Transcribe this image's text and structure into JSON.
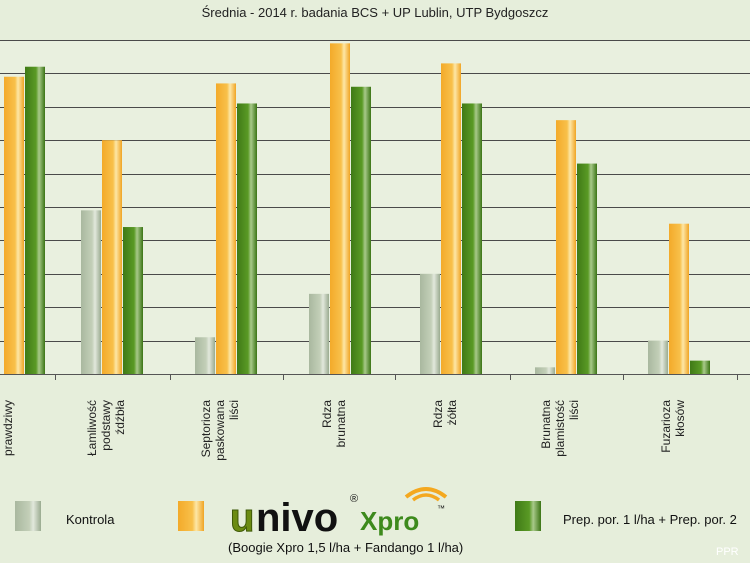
{
  "chart_data": {
    "type": "bar",
    "title": "Średnia - 2014 r. badania BCS + UP Lublin, UTP Bydgoszcz",
    "categories": [
      [
        "prawdziwy"
      ],
      [
        "Łamliwość",
        "podstawy",
        "źdźbła"
      ],
      [
        "Septorioza",
        "paskowana",
        "liści"
      ],
      [
        "Rdza",
        "brunatna"
      ],
      [
        "Rdza",
        "żółta"
      ],
      [
        "Brunatna",
        "plamistość",
        "liści"
      ],
      [
        "Fuzarioza",
        "kłosów"
      ]
    ],
    "ylim": [
      0,
      100
    ],
    "grid": true,
    "series": [
      {
        "name": "Kontrola",
        "color": "#a4b49a",
        "values": [
          null,
          49,
          11,
          24,
          30,
          2,
          10
        ]
      },
      {
        "name": "Unvo Xpro",
        "color": "#f7b538",
        "values": [
          89,
          70,
          87,
          99,
          93,
          76,
          45
        ]
      },
      {
        "name": "Prep. por. 1 l/ha + Prep. por. 2",
        "color": "#4e8a1f",
        "values": [
          92,
          44,
          81,
          86,
          81,
          63,
          4
        ]
      }
    ]
  },
  "legend": {
    "kontrola": "Kontrola",
    "brand_u": "u",
    "brand_nivo": "nivo",
    "brand_reg": "®",
    "brand_xpro": "Xpro",
    "brand_tm": "™",
    "brand_sub": "(Boogie Xpro 1,5 l/ha + Fandango 1 l/ha)",
    "prep": "Prep. por. 1 l/ha + Prep. por. 2"
  },
  "watermark": "PPR"
}
